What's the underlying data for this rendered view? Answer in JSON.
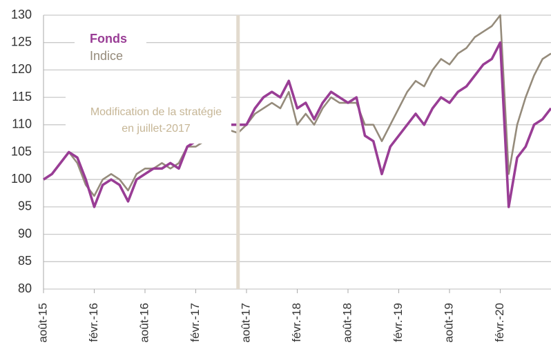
{
  "chart_data": {
    "type": "line",
    "x": [
      "2015-08",
      "2015-09",
      "2015-10",
      "2015-11",
      "2015-12",
      "2016-01",
      "2016-02",
      "2016-03",
      "2016-04",
      "2016-05",
      "2016-06",
      "2016-07",
      "2016-08",
      "2016-09",
      "2016-10",
      "2016-11",
      "2016-12",
      "2017-01",
      "2017-02",
      "2017-03",
      "2017-04",
      "2017-05",
      "2017-06",
      "2017-07",
      "2017-08",
      "2017-09",
      "2017-10",
      "2017-11",
      "2017-12",
      "2018-01",
      "2018-02",
      "2018-03",
      "2018-04",
      "2018-05",
      "2018-06",
      "2018-07",
      "2018-08",
      "2018-09",
      "2018-10",
      "2018-11",
      "2018-12",
      "2019-01",
      "2019-02",
      "2019-03",
      "2019-04",
      "2019-05",
      "2019-06",
      "2019-07",
      "2019-08",
      "2019-09",
      "2019-10",
      "2019-11",
      "2019-12",
      "2020-01",
      "2020-02",
      "2020-03",
      "2020-04",
      "2020-05",
      "2020-06",
      "2020-07",
      "2020-08"
    ],
    "series": [
      {
        "name": "Fonds",
        "color": "#993d95",
        "values": [
          100,
          101,
          103,
          105,
          104,
          100,
          95,
          99,
          100,
          99,
          96,
          100,
          101,
          102,
          102,
          103,
          102,
          106,
          107,
          107,
          109,
          110,
          110,
          110,
          110,
          113,
          115,
          116,
          115,
          118,
          113,
          114,
          111,
          114,
          116,
          115,
          114,
          115,
          108,
          107,
          101,
          106,
          108,
          110,
          112,
          110,
          113,
          115,
          114,
          116,
          117,
          119,
          121,
          122,
          125,
          95,
          104,
          106,
          110,
          111,
          113
        ]
      },
      {
        "name": "Indice",
        "color": "#958b7b",
        "values": [
          100,
          101,
          103,
          105,
          103,
          99,
          97,
          100,
          101,
          100,
          98,
          101,
          102,
          102,
          103,
          102,
          103,
          106,
          106,
          107,
          108,
          109,
          109,
          108.5,
          110,
          112,
          113,
          114,
          113,
          116,
          110,
          112,
          110,
          113,
          115,
          114,
          114,
          114,
          110,
          110,
          107,
          110,
          113,
          116,
          118,
          117,
          120,
          122,
          121,
          123,
          124,
          126,
          127,
          128,
          130,
          101,
          110,
          115,
          119,
          122,
          123
        ]
      }
    ],
    "xlim": [
      "2015-08",
      "2020-08"
    ],
    "xticks": [
      {
        "value": "2015-08",
        "label": "août-15"
      },
      {
        "value": "2016-02",
        "label": "févr.-16"
      },
      {
        "value": "2016-08",
        "label": "août-16"
      },
      {
        "value": "2017-02",
        "label": "févr.-17"
      },
      {
        "value": "2017-08",
        "label": "août-17"
      },
      {
        "value": "2018-02",
        "label": "févr.-18"
      },
      {
        "value": "2018-08",
        "label": "août-18"
      },
      {
        "value": "2019-02",
        "label": "févr.-19"
      },
      {
        "value": "2019-08",
        "label": "août-19"
      },
      {
        "value": "2020-02",
        "label": "févr.-20"
      }
    ],
    "ylim": [
      80,
      130
    ],
    "yticks": [
      80,
      85,
      90,
      95,
      100,
      105,
      110,
      115,
      120,
      125,
      130
    ],
    "grid": true,
    "annotation": {
      "x": "2017-07",
      "text": [
        "Modification de la stratégie",
        "en juillet-2017"
      ]
    }
  }
}
